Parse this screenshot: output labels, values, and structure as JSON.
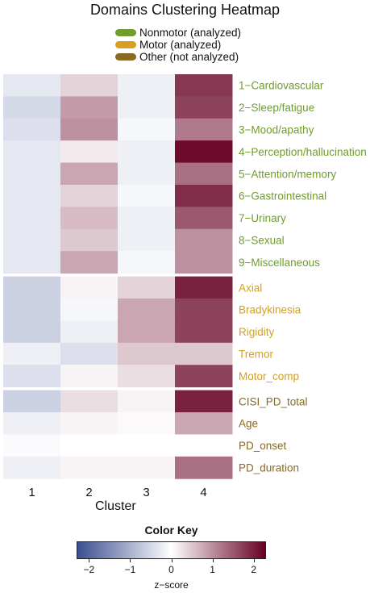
{
  "chart_data": {
    "type": "heatmap",
    "title": "Domains Clustering Heatmap",
    "xlabel": "Cluster",
    "columns": [
      "1",
      "2",
      "3",
      "4"
    ],
    "legend": [
      {
        "label": "Nonmotor (analyzed)",
        "color": "#6f9e2c"
      },
      {
        "label": "Motor (analyzed)",
        "color": "#d6a01e"
      },
      {
        "label": "Other (not analyzed)",
        "color": "#8b6a1f"
      }
    ],
    "rows": [
      {
        "label": "1−Cardiovascular",
        "group": 0,
        "values": [
          -0.3,
          0.4,
          -0.2,
          1.8
        ]
      },
      {
        "label": "2−Sleep/fatigue",
        "group": 0,
        "values": [
          -0.5,
          0.9,
          -0.2,
          1.7
        ]
      },
      {
        "label": "3−Mood/apathy",
        "group": 0,
        "values": [
          -0.4,
          1.0,
          -0.1,
          1.2
        ]
      },
      {
        "label": "4−Perception/hallucination",
        "group": 0,
        "values": [
          -0.3,
          0.2,
          -0.2,
          2.2
        ]
      },
      {
        "label": "5−Attention/memory",
        "group": 0,
        "values": [
          -0.3,
          0.8,
          -0.2,
          1.3
        ]
      },
      {
        "label": "6−Gastrointestinal",
        "group": 0,
        "values": [
          -0.3,
          0.4,
          -0.1,
          1.9
        ]
      },
      {
        "label": "7−Urinary",
        "group": 0,
        "values": [
          -0.3,
          0.6,
          -0.2,
          1.5
        ]
      },
      {
        "label": "8−Sexual",
        "group": 0,
        "values": [
          -0.3,
          0.5,
          -0.2,
          1.0
        ]
      },
      {
        "label": "9−Miscellaneous",
        "group": 0,
        "values": [
          -0.3,
          0.8,
          -0.1,
          1.0
        ]
      },
      {
        "label": "Axial",
        "group": 1,
        "values": [
          -0.6,
          0.1,
          0.4,
          2.0
        ]
      },
      {
        "label": "Bradykinesia",
        "group": 1,
        "values": [
          -0.6,
          -0.1,
          0.8,
          1.7
        ]
      },
      {
        "label": "Rigidity",
        "group": 1,
        "values": [
          -0.6,
          -0.2,
          0.8,
          1.7
        ]
      },
      {
        "label": "Tremor",
        "group": 1,
        "values": [
          -0.2,
          -0.4,
          0.5,
          0.5
        ]
      },
      {
        "label": "Motor_comp",
        "group": 1,
        "values": [
          -0.4,
          0.1,
          0.3,
          1.7
        ]
      },
      {
        "label": "CISI_PD_total",
        "group": 2,
        "values": [
          -0.6,
          0.3,
          0.1,
          2.0
        ]
      },
      {
        "label": "Age",
        "group": 2,
        "values": [
          -0.2,
          0.1,
          0.05,
          0.8
        ]
      },
      {
        "label": "PD_onset",
        "group": 2,
        "values": [
          -0.05,
          0.0,
          0.0,
          0.0
        ]
      },
      {
        "label": "PD_duration",
        "group": 2,
        "values": [
          -0.2,
          0.1,
          0.1,
          1.3
        ]
      }
    ],
    "color_key": {
      "title": "Color Key",
      "xlabel": "z−score",
      "range": [
        -2.3,
        2.3
      ],
      "ticks": [
        "−2",
        "−1",
        "0",
        "1",
        "2"
      ],
      "tick_values": [
        -2,
        -1,
        0,
        1,
        2
      ],
      "colors": [
        "#3b4f8f",
        "#ffffff",
        "#660022"
      ]
    }
  }
}
